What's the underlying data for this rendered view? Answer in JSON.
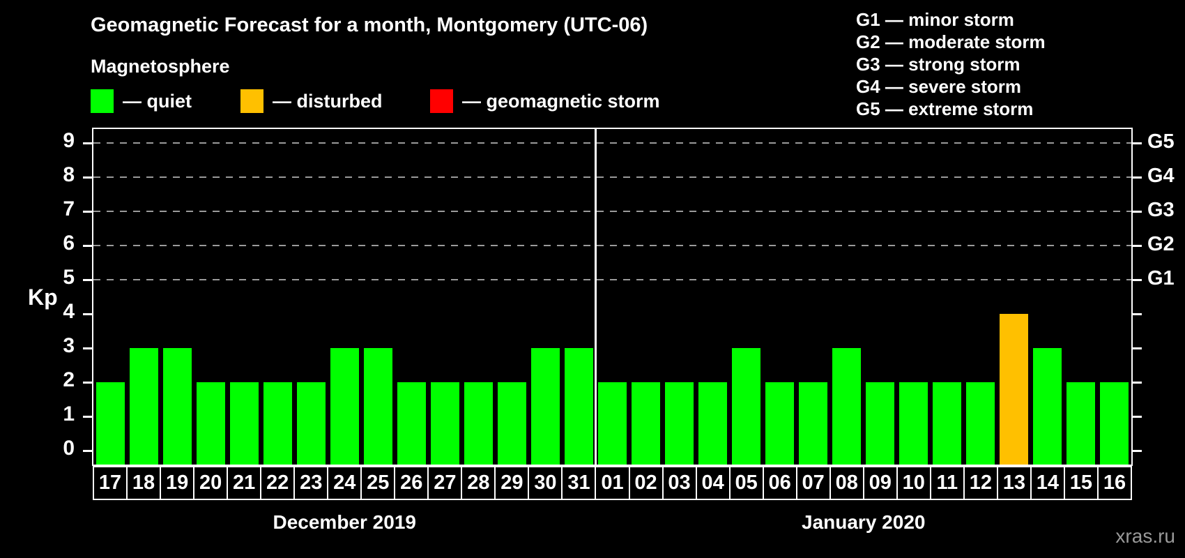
{
  "title": "Geomagnetic Forecast for a month, Montgomery (UTC-06)",
  "subtitle": "Magnetosphere",
  "legend": {
    "items": [
      {
        "key": "quiet",
        "label": "— quiet"
      },
      {
        "key": "disturbed",
        "label": "— disturbed"
      },
      {
        "key": "storm",
        "label": "— geomagnetic storm"
      }
    ]
  },
  "g_scale_legend": {
    "items": [
      "G1 — minor storm",
      "G2 — moderate storm",
      "G3 — strong storm",
      "G4 — severe storm",
      "G5 — extreme storm"
    ]
  },
  "watermark": "xras.ru",
  "chart_data": {
    "type": "bar",
    "ylabel": "Kp",
    "ylim": [
      -0.4,
      9.4
    ],
    "y_ticks": [
      0,
      1,
      2,
      3,
      4,
      5,
      6,
      7,
      8,
      9
    ],
    "gridlines_at_kp": [
      5,
      6,
      7,
      8,
      9
    ],
    "right_axis": [
      {
        "label": "G1",
        "kp": 5
      },
      {
        "label": "G2",
        "kp": 6
      },
      {
        "label": "G3",
        "kp": 7
      },
      {
        "label": "G4",
        "kp": 8
      },
      {
        "label": "G5",
        "kp": 9
      }
    ],
    "status_colors": {
      "quiet": "#00ff00",
      "disturbed": "#ffc000",
      "storm": "#ff0000"
    },
    "groups": [
      {
        "label": "December 2019",
        "days": [
          {
            "date": "17",
            "kp": 2,
            "status": "quiet"
          },
          {
            "date": "18",
            "kp": 3,
            "status": "quiet"
          },
          {
            "date": "19",
            "kp": 3,
            "status": "quiet"
          },
          {
            "date": "20",
            "kp": 2,
            "status": "quiet"
          },
          {
            "date": "21",
            "kp": 2,
            "status": "quiet"
          },
          {
            "date": "22",
            "kp": 2,
            "status": "quiet"
          },
          {
            "date": "23",
            "kp": 2,
            "status": "quiet"
          },
          {
            "date": "24",
            "kp": 3,
            "status": "quiet"
          },
          {
            "date": "25",
            "kp": 3,
            "status": "quiet"
          },
          {
            "date": "26",
            "kp": 2,
            "status": "quiet"
          },
          {
            "date": "27",
            "kp": 2,
            "status": "quiet"
          },
          {
            "date": "28",
            "kp": 2,
            "status": "quiet"
          },
          {
            "date": "29",
            "kp": 2,
            "status": "quiet"
          },
          {
            "date": "30",
            "kp": 3,
            "status": "quiet"
          },
          {
            "date": "31",
            "kp": 3,
            "status": "quiet"
          }
        ]
      },
      {
        "label": "January 2020",
        "days": [
          {
            "date": "01",
            "kp": 2,
            "status": "quiet"
          },
          {
            "date": "02",
            "kp": 2,
            "status": "quiet"
          },
          {
            "date": "03",
            "kp": 2,
            "status": "quiet"
          },
          {
            "date": "04",
            "kp": 2,
            "status": "quiet"
          },
          {
            "date": "05",
            "kp": 3,
            "status": "quiet"
          },
          {
            "date": "06",
            "kp": 2,
            "status": "quiet"
          },
          {
            "date": "07",
            "kp": 2,
            "status": "quiet"
          },
          {
            "date": "08",
            "kp": 3,
            "status": "quiet"
          },
          {
            "date": "09",
            "kp": 2,
            "status": "quiet"
          },
          {
            "date": "10",
            "kp": 2,
            "status": "quiet"
          },
          {
            "date": "11",
            "kp": 2,
            "status": "quiet"
          },
          {
            "date": "12",
            "kp": 2,
            "status": "quiet"
          },
          {
            "date": "13",
            "kp": 4,
            "status": "disturbed"
          },
          {
            "date": "14",
            "kp": 3,
            "status": "quiet"
          },
          {
            "date": "15",
            "kp": 2,
            "status": "quiet"
          },
          {
            "date": "16",
            "kp": 2,
            "status": "quiet"
          }
        ]
      }
    ]
  }
}
